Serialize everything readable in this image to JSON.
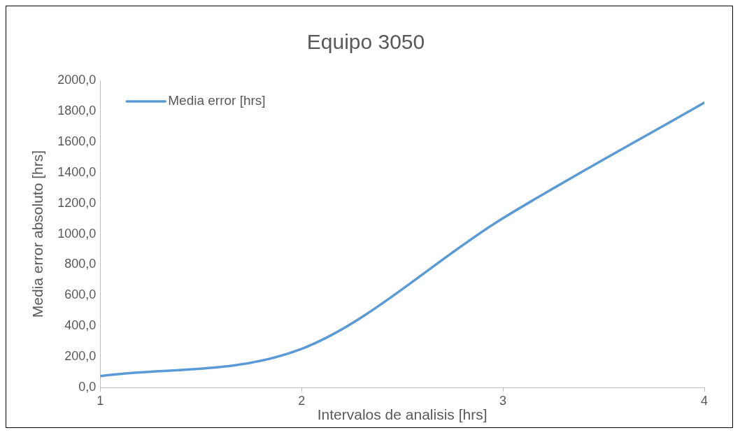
{
  "chart_data": {
    "type": "line",
    "title": "Equipo 3050",
    "xlabel": "Intervalos de analisis [hrs]",
    "ylabel": "Media error absoluto [hrs]",
    "x": [
      1,
      2,
      3,
      4
    ],
    "series": [
      {
        "name": "Media error [hrs]",
        "color": "#5b9bd5",
        "values": [
          75,
          252,
          1103,
          1855
        ]
      }
    ],
    "xlim": [
      1,
      4
    ],
    "xticks": [
      1,
      2,
      3,
      4
    ],
    "ylim": [
      0,
      2000
    ],
    "yticks": [
      {
        "value": 0,
        "label": "0,0"
      },
      {
        "value": 200,
        "label": "200,0"
      },
      {
        "value": 400,
        "label": "400,0"
      },
      {
        "value": 600,
        "label": "600,0"
      },
      {
        "value": 800,
        "label": "800,0"
      },
      {
        "value": 1000,
        "label": "1000,0"
      },
      {
        "value": 1200,
        "label": "1200,0"
      },
      {
        "value": 1400,
        "label": "1400,0"
      },
      {
        "value": 1600,
        "label": "1600,0"
      },
      {
        "value": 1800,
        "label": "1800,0"
      },
      {
        "value": 2000,
        "label": "2000,0"
      }
    ],
    "grid": false,
    "legend": "top left",
    "marker": "none",
    "line_style": "solid"
  }
}
